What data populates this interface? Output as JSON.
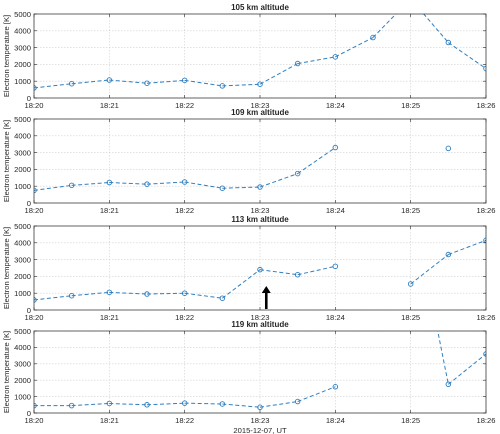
{
  "colors": {
    "series": "#2f7fc1",
    "axis": "#262626",
    "grid": "#d0d0d0",
    "arrow": "#000000"
  },
  "chart_data": [
    {
      "type": "line",
      "title": "105 km altitude",
      "ylabel": "Electron temperature [K]",
      "xlabel": "",
      "ylim": [
        0,
        5000
      ],
      "yticks": [
        0,
        1000,
        2000,
        3000,
        4000,
        5000
      ],
      "xlim": [
        "18:20",
        "18:26"
      ],
      "xticks": [
        "18:20",
        "18:21",
        "18:22",
        "18:23",
        "18:24",
        "18:25",
        "18:26"
      ],
      "grid": true,
      "x": [
        "18:20:00",
        "18:20:30",
        "18:21:00",
        "18:21:30",
        "18:22:00",
        "18:22:30",
        "18:23:00",
        "18:23:30",
        "18:24:00",
        "18:24:30",
        "18:25:00",
        "18:25:30",
        "18:26:00"
      ],
      "values": [
        600,
        850,
        1070,
        880,
        1050,
        720,
        820,
        2050,
        2450,
        3600,
        5900,
        3300,
        1750
      ],
      "markers": [
        true,
        true,
        true,
        true,
        true,
        true,
        true,
        true,
        true,
        true,
        false,
        true,
        true
      ],
      "annotation": null
    },
    {
      "type": "line",
      "title": "109 km altitude",
      "ylabel": "Electron temperature [K]",
      "xlabel": "",
      "ylim": [
        0,
        5000
      ],
      "yticks": [
        0,
        1000,
        2000,
        3000,
        4000,
        5000
      ],
      "xlim": [
        "18:20",
        "18:26"
      ],
      "xticks": [
        "18:20",
        "18:21",
        "18:22",
        "18:23",
        "18:24",
        "18:25",
        "18:26"
      ],
      "grid": true,
      "x": [
        "18:20:00",
        "18:20:30",
        "18:21:00",
        "18:21:30",
        "18:22:00",
        "18:22:30",
        "18:23:00",
        "18:23:30",
        "18:24:00",
        "18:24:30",
        "18:25:00",
        "18:25:30",
        "18:26:00"
      ],
      "values": [
        750,
        1050,
        1220,
        1120,
        1250,
        880,
        950,
        1750,
        3300,
        null,
        null,
        3250,
        null
      ],
      "markers": [
        true,
        true,
        true,
        true,
        true,
        true,
        true,
        true,
        true,
        false,
        false,
        true,
        false
      ],
      "annotation": null
    },
    {
      "type": "line",
      "title": "113 km altitude",
      "ylabel": "Electron temperature [K]",
      "xlabel": "",
      "ylim": [
        0,
        5000
      ],
      "yticks": [
        0,
        1000,
        2000,
        3000,
        4000,
        5000
      ],
      "xlim": [
        "18:20",
        "18:26"
      ],
      "xticks": [
        "18:20",
        "18:21",
        "18:22",
        "18:23",
        "18:24",
        "18:25",
        "18:26"
      ],
      "grid": true,
      "x": [
        "18:20:00",
        "18:20:30",
        "18:21:00",
        "18:21:30",
        "18:22:00",
        "18:22:30",
        "18:23:00",
        "18:23:30",
        "18:24:00",
        "18:24:30",
        "18:25:00",
        "18:25:30",
        "18:26:00"
      ],
      "values": [
        600,
        850,
        1050,
        950,
        1000,
        700,
        2400,
        2100,
        2600,
        null,
        1550,
        3300,
        4150
      ],
      "markers": [
        true,
        true,
        true,
        true,
        true,
        true,
        true,
        true,
        true,
        false,
        true,
        true,
        true
      ],
      "annotation": {
        "type": "arrow",
        "x": "18:23:05",
        "label": ""
      }
    },
    {
      "type": "line",
      "title": "119 km altitude",
      "ylabel": "Electron temperature [K]",
      "xlabel": "2015-12-07, UT",
      "ylim": [
        0,
        5000
      ],
      "yticks": [
        0,
        1000,
        2000,
        3000,
        4000,
        5000
      ],
      "xlim": [
        "18:20",
        "18:26"
      ],
      "xticks": [
        "18:20",
        "18:21",
        "18:22",
        "18:23",
        "18:24",
        "18:25",
        "18:26"
      ],
      "grid": true,
      "x": [
        "18:20:00",
        "18:20:30",
        "18:21:00",
        "18:21:30",
        "18:22:00",
        "18:22:30",
        "18:23:00",
        "18:23:30",
        "18:24:00",
        "18:24:30",
        "18:25:00",
        "18:25:20",
        "18:25:30",
        "18:26:00"
      ],
      "values": [
        450,
        450,
        580,
        500,
        600,
        550,
        350,
        700,
        1600,
        null,
        null,
        5600,
        1750,
        3600
      ],
      "markers": [
        true,
        true,
        true,
        true,
        true,
        true,
        true,
        true,
        true,
        false,
        false,
        false,
        true,
        true
      ],
      "annotation": null
    }
  ]
}
